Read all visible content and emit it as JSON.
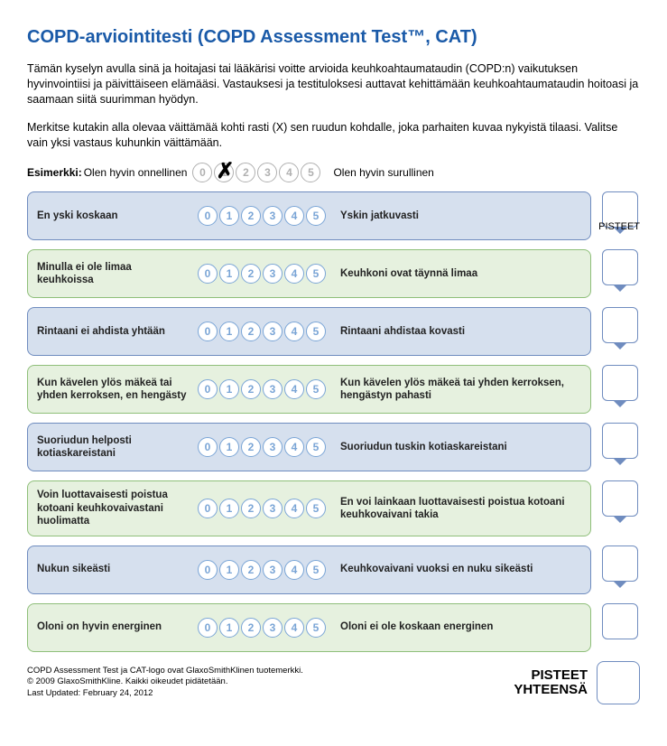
{
  "title": "COPD-arviointitesti (COPD Assessment Test™, CAT)",
  "intro": "Tämän kyselyn avulla sinä ja hoitajasi tai lääkärisi voitte arvioida keuhkoahtaumataudin (COPD:n) vaikutuksen hyvinvointiisi ja päivittäiseen elämääsi. Vastauksesi ja testituloksesi auttavat kehittämään keuhkoahtaumataudin hoitoasi ja saamaan siitä suurimman hyödyn.",
  "instructions": "Merkitse kutakin alla olevaa väittämää kohti rasti (X) sen ruudun kohdalle, joka parhaiten kuvaa nykyistä tilaasi. Valitse vain yksi vastaus kuhunkin väittämään.",
  "example": {
    "label": "Esimerkki:",
    "left": "Olen hyvin onnellinen",
    "right": "Olen hyvin surullinen",
    "marked_index": 1,
    "options": [
      "0",
      "1",
      "2",
      "3",
      "4",
      "5"
    ]
  },
  "score_header": "PISTEET",
  "scale_options": [
    "0",
    "1",
    "2",
    "3",
    "4",
    "5"
  ],
  "colors": {
    "title": "#1a5aa8",
    "row_blue_bg": "#d6e0ee",
    "row_blue_border": "#6f8cbf",
    "row_green_bg": "#e6f1df",
    "row_green_border": "#8fbf7a",
    "circle_gray": "#b0b0b0",
    "circle_blue": "#7aa5d6"
  },
  "rows": [
    {
      "left": "En yski koskaan",
      "right": "Yskin jatkuvasti",
      "theme": "blue"
    },
    {
      "left": "Minulla ei ole limaa keuhkoissa",
      "right": "Keuhkoni ovat täynnä limaa",
      "theme": "green"
    },
    {
      "left": "Rintaani ei ahdista yhtään",
      "right": "Rintaani ahdistaa kovasti",
      "theme": "blue"
    },
    {
      "left": "Kun kävelen ylös mäkeä tai yhden kerroksen, en hengästy",
      "right": "Kun kävelen ylös mäkeä tai yhden kerroksen, hengästyn pahasti",
      "theme": "green"
    },
    {
      "left": "Suoriudun helposti kotiaskareistani",
      "right": "Suoriudun tuskin kotiaskareistani",
      "theme": "blue"
    },
    {
      "left": "Voin luottavaisesti poistua kotoani keuhkovaivastani huolimatta",
      "right": "En voi lainkaan luottavaisesti poistua kotoani keuhkovaivani takia",
      "theme": "green"
    },
    {
      "left": "Nukun sikeästi",
      "right": "Keuhkovaivani vuoksi en nuku sikeästi",
      "theme": "blue"
    },
    {
      "left": "Oloni on hyvin energinen",
      "right": "Oloni ei ole koskaan energinen",
      "theme": "green"
    }
  ],
  "footer": {
    "line1": "COPD Assessment Test ja CAT-logo ovat GlaxoSmithKlinen tuotemerkki.",
    "line2": "© 2009 GlaxoSmithKline. Kaikki oikeudet pidätetään.",
    "line3": "Last Updated: February 24, 2012"
  },
  "total": {
    "label1": "PISTEET",
    "label2": "YHTEENSÄ"
  }
}
